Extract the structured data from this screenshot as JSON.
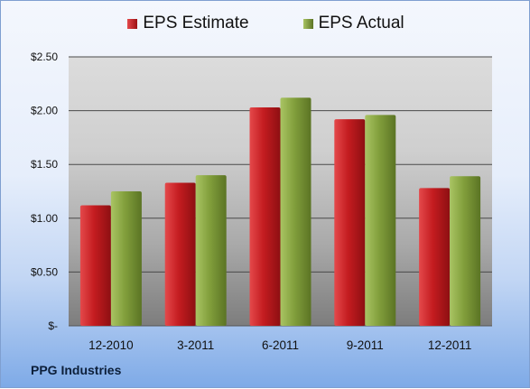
{
  "colors": {
    "estimate": "#c0171b",
    "actual": "#7f9e3a"
  },
  "chart_data": {
    "type": "bar",
    "categories": [
      "12-2010",
      "3-2011",
      "6-2011",
      "9-2011",
      "12-2011"
    ],
    "series": [
      {
        "name": "EPS Estimate",
        "values": [
          1.12,
          1.33,
          2.03,
          1.92,
          1.28
        ]
      },
      {
        "name": "EPS Actual",
        "values": [
          1.25,
          1.4,
          2.12,
          1.96,
          1.39
        ]
      }
    ],
    "y_ticks": [
      {
        "value": 0,
        "label": "$-"
      },
      {
        "value": 0.5,
        "label": "$0.50"
      },
      {
        "value": 1.0,
        "label": "$1.00"
      },
      {
        "value": 1.5,
        "label": "$1.50"
      },
      {
        "value": 2.0,
        "label": "$2.00"
      },
      {
        "value": 2.5,
        "label": "$2.50"
      }
    ],
    "ylim": [
      0,
      2.5
    ],
    "grid": true,
    "legend_position": "top-center",
    "company": "PPG Industries"
  }
}
